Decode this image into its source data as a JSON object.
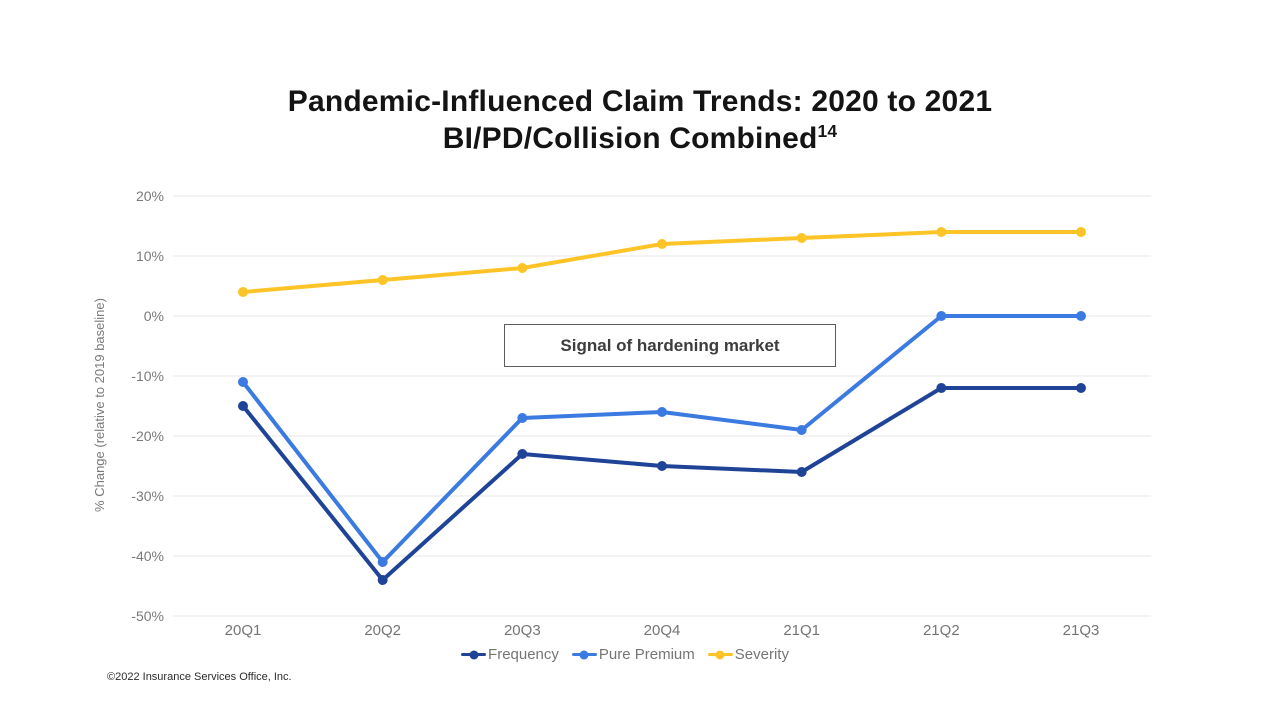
{
  "title": {
    "line1": "Pandemic-Influenced Claim Trends: 2020 to 2021",
    "line2": "BI/PD/Collision Combined",
    "superscript": "14"
  },
  "annotation": {
    "text": "Signal of hardening market"
  },
  "footer": {
    "copyright": "©2022 Insurance Services Office, Inc."
  },
  "colors": {
    "frequency": "#1F4497",
    "pure_premium": "#3B7AE0",
    "severity": "#FDC428",
    "gridline": "#E7E7E7",
    "axis_text": "#7A7A7A",
    "title_text": "#141414"
  },
  "chart_data": {
    "type": "line",
    "title": "Pandemic-Influenced Claim Trends: 2020 to 2021",
    "subtitle": "BI/PD/Collision Combined¹⁴",
    "categories": [
      "20Q1",
      "20Q2",
      "20Q3",
      "20Q4",
      "21Q1",
      "21Q2",
      "21Q3"
    ],
    "series": [
      {
        "name": "Frequency",
        "color": "#1F4497",
        "values": [
          -15,
          -44,
          -23,
          -25,
          -26,
          -12,
          -12
        ]
      },
      {
        "name": "Pure Premium",
        "color": "#3B7AE0",
        "values": [
          -11,
          -41,
          -17,
          -16,
          -19,
          0,
          0
        ]
      },
      {
        "name": "Severity",
        "color": "#FDC428",
        "values": [
          4,
          6,
          8,
          12,
          13,
          14,
          14
        ]
      }
    ],
    "xlabel": "",
    "ylabel": "% Change (relative to 2019 baseline)",
    "ylim": [
      -50,
      20
    ],
    "ytick_step": 10,
    "ytick_labels": [
      "20%",
      "10%",
      "0%",
      "-10%",
      "-20%",
      "-30%",
      "-40%",
      "-50%"
    ],
    "grid": true,
    "legend_position": "bottom",
    "annotation": "Signal of hardening market"
  }
}
